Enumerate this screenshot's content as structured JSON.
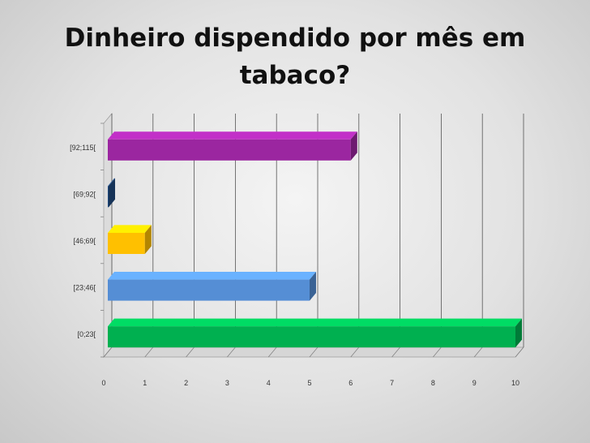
{
  "slide": {
    "title": "Dinheiro dispendido por mês em tabaco?"
  },
  "chart_data": {
    "type": "bar",
    "orientation": "horizontal",
    "title": "Dinheiro dispendido por mês em tabaco?",
    "xlabel": "",
    "ylabel": "",
    "categories": [
      "[0;23[",
      "[23;46[",
      "[46;69[",
      "[69;92[",
      "[92;115["
    ],
    "values": [
      10,
      5,
      1,
      0,
      6
    ],
    "colors": [
      "#00b050",
      "#558ed5",
      "#ffc000",
      "#1f497d",
      "#9b26a0"
    ],
    "xlim": [
      0,
      10
    ],
    "xticks": [
      0,
      1,
      2,
      3,
      4,
      5,
      6,
      7,
      8,
      9,
      10
    ],
    "grid": true,
    "style": "3d"
  }
}
